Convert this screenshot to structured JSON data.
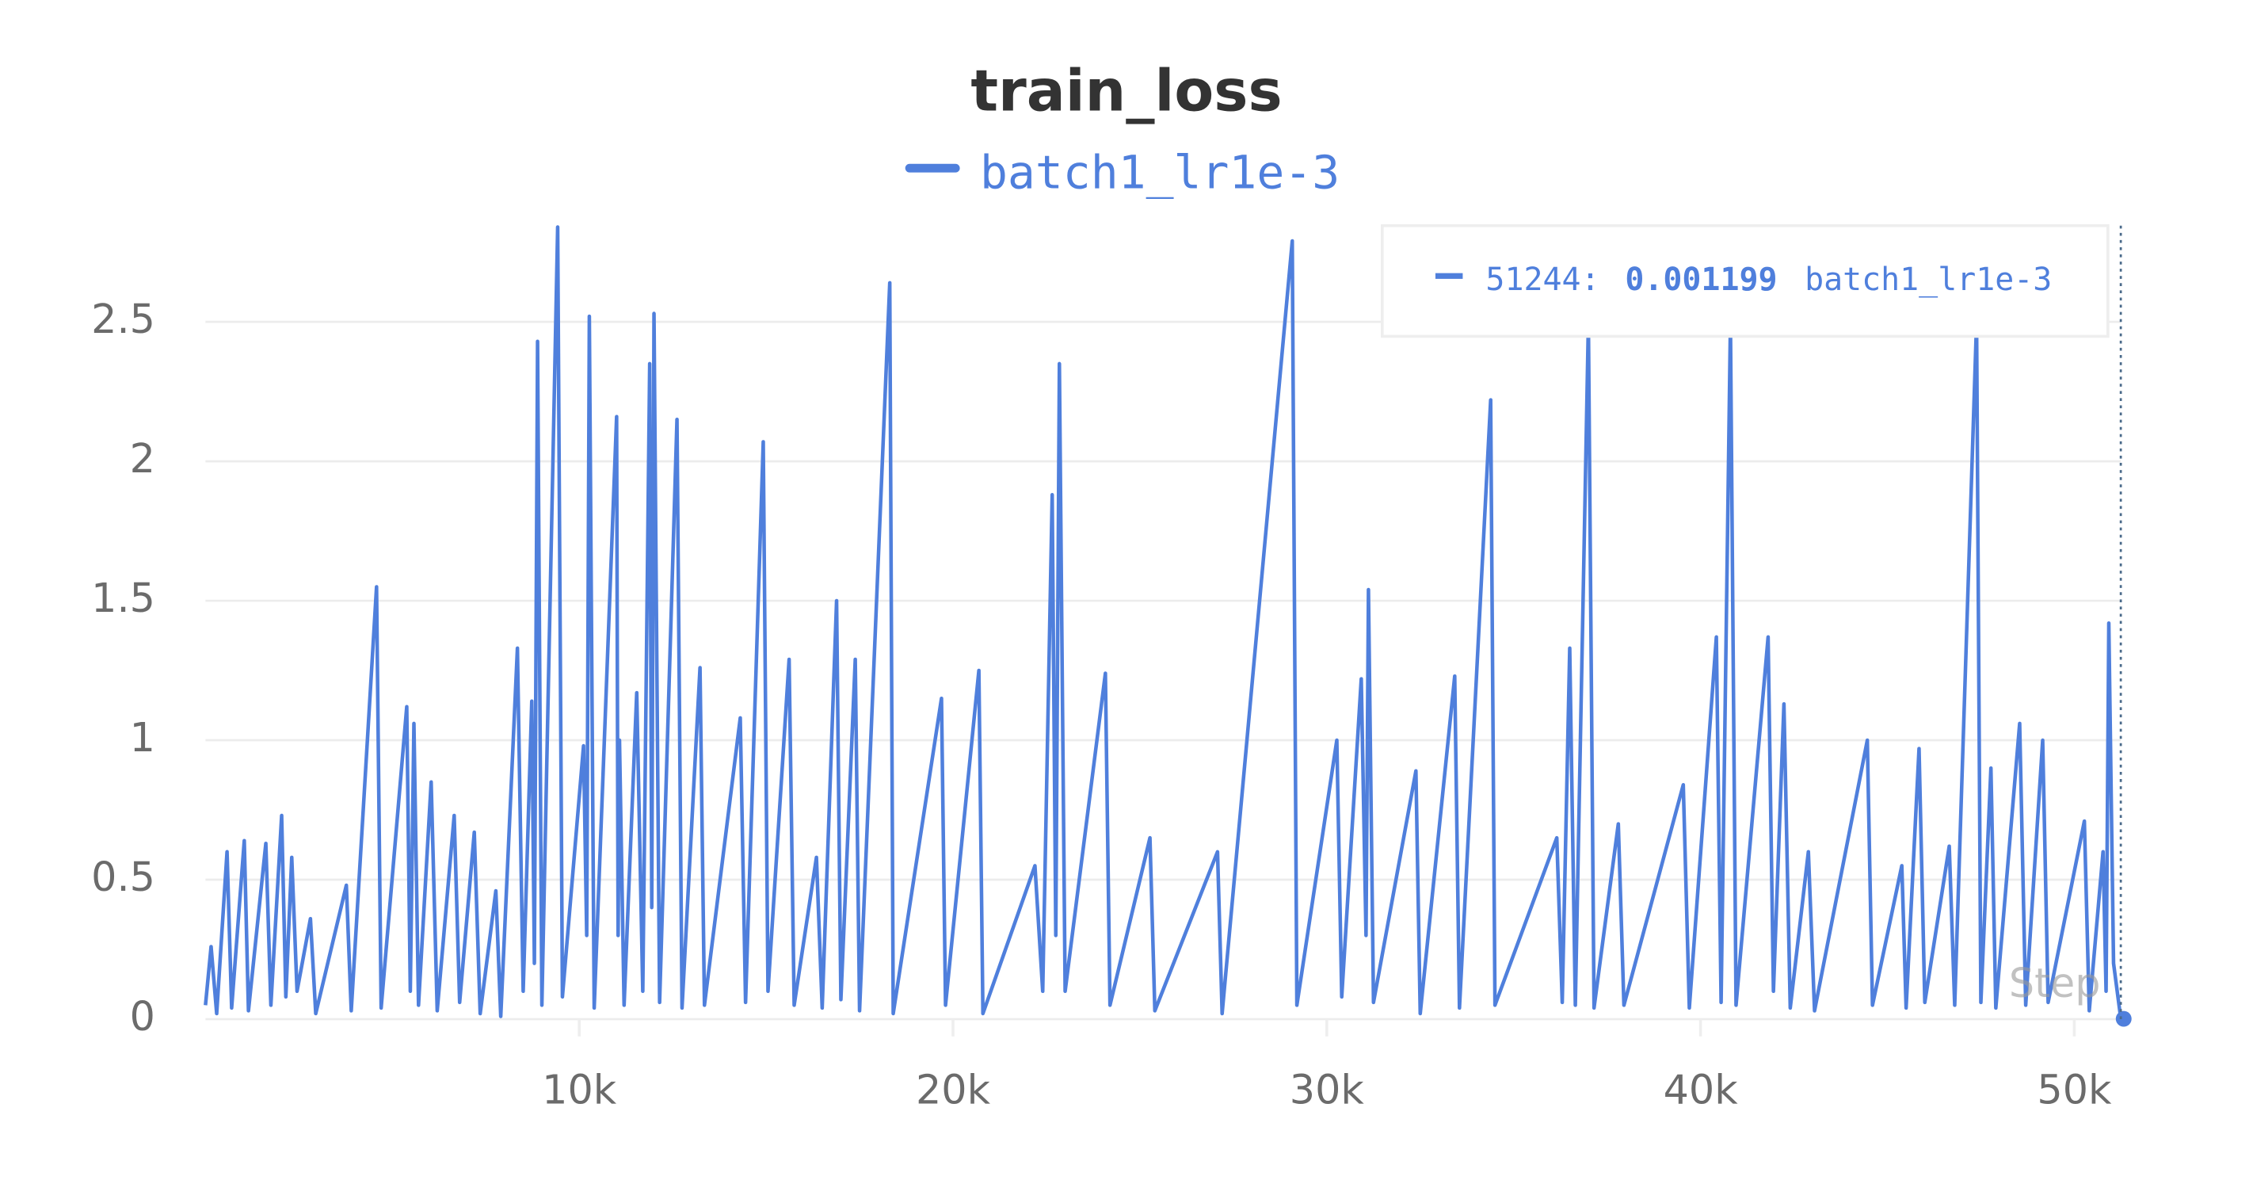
{
  "chart_data": {
    "type": "line",
    "title": "train_loss",
    "x_label": "Step",
    "x": [
      0,
      150,
      300,
      577,
      700,
      1038,
      1150,
      1615,
      1750,
      2038,
      2150,
      2308,
      2450,
      2808,
      2950,
      3769,
      3900,
      4577,
      4700,
      5385,
      5480,
      5577,
      5700,
      6038,
      6200,
      6654,
      6800,
      7192,
      7350,
      7769,
      7900,
      8346,
      8500,
      8730,
      8800,
      8885,
      9000,
      9423,
      9550,
      10115,
      10200,
      10270,
      10400,
      11000,
      11040,
      11077,
      11200,
      11538,
      11700,
      11885,
      11940,
      12000,
      12150,
      12615,
      12750,
      13231,
      13350,
      14308,
      14450,
      14923,
      15050,
      15615,
      15750,
      16346,
      16500,
      16885,
      17000,
      17385,
      17500,
      18308,
      18400,
      19692,
      19800,
      20692,
      20800,
      22192,
      22400,
      22654,
      22750,
      22846,
      23000,
      24077,
      24200,
      25269,
      25400,
      27077,
      27200,
      29077,
      29200,
      30269,
      30400,
      30923,
      31050,
      31115,
      31250,
      32385,
      32500,
      33423,
      33550,
      34385,
      34500,
      36154,
      36300,
      36500,
      36650,
      37000,
      37150,
      37800,
      37950,
      39538,
      39700,
      40423,
      40550,
      40800,
      40950,
      41808,
      41950,
      42231,
      42400,
      42885,
      43050,
      44462,
      44600,
      45385,
      45500,
      45846,
      46000,
      46654,
      46800,
      47385,
      47500,
      47769,
      47900,
      48538,
      48700,
      49154,
      49300,
      50269,
      50400,
      50769,
      50850,
      50923,
      51050,
      51244
    ],
    "series": [
      {
        "name": "batch1_lr1e-3",
        "color": "#4f7fdc",
        "values": [
          0.05,
          0.26,
          0.02,
          0.6,
          0.04,
          0.64,
          0.03,
          0.63,
          0.05,
          0.73,
          0.08,
          0.58,
          0.1,
          0.36,
          0.02,
          0.48,
          0.03,
          1.55,
          0.04,
          1.12,
          0.1,
          1.06,
          0.05,
          0.85,
          0.03,
          0.73,
          0.06,
          0.67,
          0.02,
          0.46,
          0.01,
          1.33,
          0.1,
          1.14,
          0.2,
          2.43,
          0.05,
          2.84,
          0.08,
          0.98,
          0.3,
          2.52,
          0.04,
          2.16,
          0.3,
          1.0,
          0.05,
          1.17,
          0.1,
          2.35,
          0.4,
          2.53,
          0.06,
          2.15,
          0.04,
          1.26,
          0.05,
          1.08,
          0.06,
          2.07,
          0.1,
          1.29,
          0.05,
          0.58,
          0.04,
          1.5,
          0.07,
          1.29,
          0.03,
          2.64,
          0.02,
          1.15,
          0.05,
          1.25,
          0.02,
          0.55,
          0.1,
          1.88,
          0.3,
          2.35,
          0.1,
          1.24,
          0.05,
          0.65,
          0.03,
          0.6,
          0.02,
          2.79,
          0.05,
          1.0,
          0.08,
          1.22,
          0.3,
          1.54,
          0.06,
          0.89,
          0.02,
          1.23,
          0.04,
          2.22,
          0.05,
          0.65,
          0.06,
          1.33,
          0.05,
          2.5,
          0.04,
          0.7,
          0.05,
          0.84,
          0.04,
          1.37,
          0.06,
          2.5,
          0.05,
          1.37,
          0.1,
          1.13,
          0.04,
          0.6,
          0.03,
          1.0,
          0.05,
          0.55,
          0.04,
          0.97,
          0.06,
          0.62,
          0.05,
          2.5,
          0.06,
          0.9,
          0.04,
          1.06,
          0.05,
          1.0,
          0.06,
          0.71,
          0.03,
          0.6,
          0.1,
          1.42,
          0.2,
          0.001199
        ]
      }
    ],
    "xlim": [
      0,
      51244
    ],
    "xticks": [
      {
        "value": 10000,
        "label": "10k"
      },
      {
        "value": 20000,
        "label": "20k"
      },
      {
        "value": 30000,
        "label": "30k"
      },
      {
        "value": 40000,
        "label": "40k"
      },
      {
        "value": 50000,
        "label": "50k"
      }
    ],
    "ylim": [
      0,
      2.85
    ],
    "yticks": [
      0,
      0.5,
      1,
      1.5,
      2,
      2.5
    ],
    "grid": true,
    "tooltip": {
      "step": "51244:",
      "value": "0.001199",
      "series": "batch1_lr1e-3"
    }
  }
}
